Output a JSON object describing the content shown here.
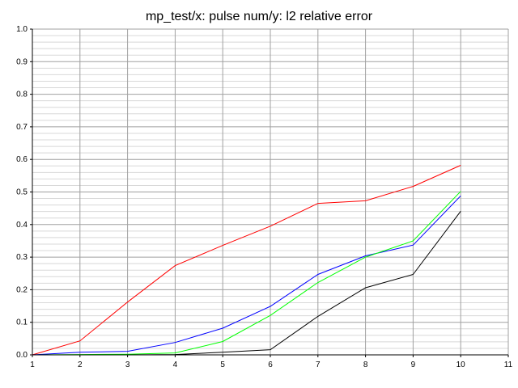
{
  "chart_data": {
    "type": "line",
    "title": "mp_test/x: pulse num/y: l2 relative error",
    "xlabel": "",
    "ylabel": "",
    "xlim": [
      1,
      11
    ],
    "ylim": [
      0,
      1
    ],
    "xticks": [
      "1",
      "2",
      "3",
      "4",
      "5",
      "6",
      "7",
      "8",
      "9",
      "10",
      "11"
    ],
    "yticks": [
      "0.0",
      "0.1",
      "0.2",
      "0.3",
      "0.4",
      "0.5",
      "0.6",
      "0.7",
      "0.8",
      "0.9",
      "1.0"
    ],
    "grid": true,
    "x": [
      1,
      2,
      3,
      4,
      5,
      6,
      7,
      8,
      9,
      10
    ],
    "series": [
      {
        "color": "#ff0000",
        "values": [
          0.0,
          0.043,
          0.162,
          0.274,
          0.336,
          0.395,
          0.465,
          0.473,
          0.517,
          0.582
        ]
      },
      {
        "color": "#0000ff",
        "values": [
          0.0,
          0.008,
          0.011,
          0.038,
          0.082,
          0.149,
          0.247,
          0.304,
          0.337,
          0.488
        ]
      },
      {
        "color": "#00ff00",
        "values": [
          0.0,
          0.001,
          0.002,
          0.006,
          0.041,
          0.121,
          0.222,
          0.3,
          0.35,
          0.502
        ]
      },
      {
        "color": "#000000",
        "values": [
          0.0,
          0.0,
          0.0,
          0.001,
          0.008,
          0.016,
          0.118,
          0.206,
          0.247,
          0.441
        ]
      }
    ]
  }
}
